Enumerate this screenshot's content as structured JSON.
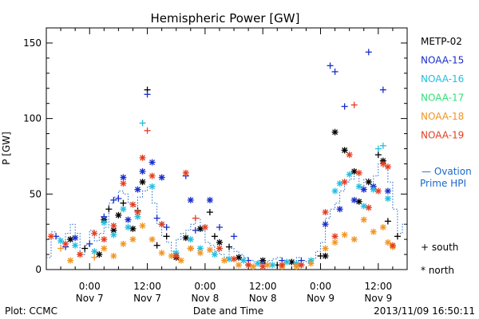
{
  "chart_data": {
    "type": "scatter",
    "title": "Hemispheric Power [GW]",
    "ylabel": "P [GW]",
    "xlabel": "Date and Time",
    "ylim": [
      0,
      160
    ],
    "yticks": [
      0,
      50,
      100,
      150
    ],
    "xlim": [
      -9,
      66
    ],
    "xticks": [
      {
        "t": 0,
        "top": "0:00",
        "bottom": "Nov 7"
      },
      {
        "t": 12,
        "top": "12:00",
        "bottom": "Nov 7"
      },
      {
        "t": 24,
        "top": "0:00",
        "bottom": "Nov 8"
      },
      {
        "t": 36,
        "top": "12:00",
        "bottom": "Nov 8"
      },
      {
        "t": 48,
        "top": "0:00",
        "bottom": "Nov 9"
      },
      {
        "t": 60,
        "top": "12:00",
        "bottom": "Nov 9"
      }
    ],
    "series": [
      {
        "name": "METP-02",
        "color": "#000000",
        "points": [
          [
            -4,
            20,
            "*"
          ],
          [
            -1,
            14,
            "+"
          ],
          [
            2,
            10,
            "*"
          ],
          [
            3,
            33,
            "*"
          ],
          [
            4,
            40,
            "+"
          ],
          [
            5,
            26,
            "*"
          ],
          [
            6,
            36,
            "*"
          ],
          [
            7,
            44,
            "+"
          ],
          [
            9,
            27,
            "*"
          ],
          [
            10,
            39,
            "+"
          ],
          [
            11,
            58,
            "*"
          ],
          [
            12,
            119,
            "+"
          ],
          [
            14,
            16,
            "+"
          ],
          [
            16,
            22,
            "+"
          ],
          [
            18,
            8,
            "*"
          ],
          [
            20,
            21,
            "*"
          ],
          [
            21,
            14,
            "+"
          ],
          [
            23,
            27,
            "*"
          ],
          [
            25,
            38,
            "+"
          ],
          [
            26,
            22,
            "+"
          ],
          [
            27,
            18,
            "*"
          ],
          [
            29,
            15,
            "+"
          ],
          [
            31,
            8,
            "*"
          ],
          [
            33,
            3,
            "+"
          ],
          [
            36,
            6,
            "*"
          ],
          [
            39,
            3,
            "+"
          ],
          [
            42,
            5,
            "*"
          ],
          [
            44,
            3,
            "+"
          ],
          [
            48,
            9,
            "+"
          ],
          [
            49,
            9,
            "*"
          ],
          [
            51,
            91,
            "*"
          ],
          [
            53,
            79,
            "*"
          ],
          [
            55,
            65,
            "*"
          ],
          [
            56,
            45,
            "*"
          ],
          [
            58,
            58,
            "*"
          ],
          [
            60,
            76,
            "+"
          ],
          [
            61,
            72,
            "*"
          ],
          [
            62,
            32,
            "+"
          ],
          [
            64,
            22,
            "+"
          ]
        ]
      },
      {
        "name": "NOAA-15",
        "color": "#1a2ecc",
        "points": [
          [
            -7,
            22,
            "+"
          ],
          [
            -5,
            15,
            "+"
          ],
          [
            -3,
            21,
            "*"
          ],
          [
            0,
            17,
            "+"
          ],
          [
            3,
            35,
            "+"
          ],
          [
            5,
            46,
            "+"
          ],
          [
            6,
            47,
            "+"
          ],
          [
            7,
            61,
            "*"
          ],
          [
            8,
            33,
            "*"
          ],
          [
            10,
            53,
            "*"
          ],
          [
            11,
            65,
            "*"
          ],
          [
            12,
            116,
            "+"
          ],
          [
            13,
            71,
            "*"
          ],
          [
            14,
            34,
            "+"
          ],
          [
            15,
            61,
            "*"
          ],
          [
            16,
            28,
            "+"
          ],
          [
            20,
            62,
            "+"
          ],
          [
            21,
            46,
            "*"
          ],
          [
            22,
            26,
            "+"
          ],
          [
            25,
            46,
            "*"
          ],
          [
            27,
            28,
            "+"
          ],
          [
            30,
            22,
            "+"
          ],
          [
            33,
            6,
            "+"
          ],
          [
            36,
            4,
            "+"
          ],
          [
            40,
            6,
            "+"
          ],
          [
            44,
            6,
            "+"
          ],
          [
            49,
            30,
            "*"
          ],
          [
            50,
            135,
            "+"
          ],
          [
            51,
            131,
            "+"
          ],
          [
            52,
            40,
            "*"
          ],
          [
            53,
            108,
            "+"
          ],
          [
            55,
            46,
            "*"
          ],
          [
            57,
            53,
            "*"
          ],
          [
            58,
            144,
            "+"
          ],
          [
            59,
            55,
            "*"
          ],
          [
            61,
            119,
            "+"
          ],
          [
            62,
            52,
            "*"
          ]
        ]
      },
      {
        "name": "NOAA-16",
        "color": "#22bfe0",
        "points": [
          [
            -6,
            19,
            "*"
          ],
          [
            -3,
            16,
            "*"
          ],
          [
            1,
            12,
            "*"
          ],
          [
            3,
            31,
            "*"
          ],
          [
            5,
            23,
            "*"
          ],
          [
            7,
            40,
            "*"
          ],
          [
            8,
            28,
            "*"
          ],
          [
            10,
            35,
            "*"
          ],
          [
            11,
            97,
            "+"
          ],
          [
            13,
            55,
            "*"
          ],
          [
            15,
            30,
            "*"
          ],
          [
            18,
            11,
            "*"
          ],
          [
            21,
            20,
            "*"
          ],
          [
            23,
            14,
            "*"
          ],
          [
            26,
            10,
            "*"
          ],
          [
            29,
            7,
            "*"
          ],
          [
            32,
            6,
            "*"
          ],
          [
            35,
            4,
            "*"
          ],
          [
            38,
            3,
            "*"
          ],
          [
            41,
            5,
            "*"
          ],
          [
            43,
            4,
            "*"
          ],
          [
            46,
            6,
            "*"
          ],
          [
            51,
            52,
            "*"
          ],
          [
            52,
            57,
            "*"
          ],
          [
            54,
            63,
            "*"
          ],
          [
            56,
            55,
            "*"
          ],
          [
            57,
            42,
            "*"
          ],
          [
            59,
            53,
            "*"
          ],
          [
            60,
            80,
            "+"
          ],
          [
            61,
            82,
            "+"
          ],
          [
            62,
            47,
            "*"
          ]
        ]
      },
      {
        "name": "NOAA-17",
        "color": "#33e07a",
        "points": []
      },
      {
        "name": "NOAA-18",
        "color": "#f29522",
        "points": [
          [
            -6,
            14,
            "+"
          ],
          [
            -4,
            6,
            "*"
          ],
          [
            -2,
            10,
            "*"
          ],
          [
            1,
            8,
            "+"
          ],
          [
            3,
            14,
            "*"
          ],
          [
            5,
            9,
            "*"
          ],
          [
            7,
            17,
            "*"
          ],
          [
            9,
            20,
            "*"
          ],
          [
            11,
            29,
            "*"
          ],
          [
            13,
            20,
            "*"
          ],
          [
            15,
            11,
            "*"
          ],
          [
            17,
            9,
            "*"
          ],
          [
            19,
            6,
            "*"
          ],
          [
            21,
            14,
            "*"
          ],
          [
            23,
            11,
            "*"
          ],
          [
            25,
            13,
            "*"
          ],
          [
            28,
            6,
            "*"
          ],
          [
            31,
            3,
            "*"
          ],
          [
            34,
            2,
            "*"
          ],
          [
            37,
            3,
            "*"
          ],
          [
            40,
            2,
            "*"
          ],
          [
            43,
            2,
            "*"
          ],
          [
            46,
            4,
            "*"
          ],
          [
            49,
            14,
            "*"
          ],
          [
            51,
            18,
            "*"
          ],
          [
            53,
            23,
            "*"
          ],
          [
            55,
            20,
            "*"
          ],
          [
            57,
            33,
            "*"
          ],
          [
            59,
            25,
            "*"
          ],
          [
            61,
            28,
            "*"
          ],
          [
            62,
            18,
            "*"
          ],
          [
            63,
            15,
            "*"
          ]
        ]
      },
      {
        "name": "NOAA-19",
        "color": "#e63d1f",
        "points": [
          [
            -8,
            22,
            "*"
          ],
          [
            -5,
            17,
            "*"
          ],
          [
            -2,
            10,
            "*"
          ],
          [
            1,
            24,
            "*"
          ],
          [
            3,
            20,
            "*"
          ],
          [
            5,
            29,
            "*"
          ],
          [
            7,
            57,
            "*"
          ],
          [
            9,
            43,
            "*"
          ],
          [
            10,
            38,
            "*"
          ],
          [
            11,
            74,
            "*"
          ],
          [
            12,
            92,
            "+"
          ],
          [
            13,
            62,
            "*"
          ],
          [
            15,
            30,
            "*"
          ],
          [
            18,
            9,
            "*"
          ],
          [
            20,
            64,
            "*"
          ],
          [
            22,
            34,
            "+"
          ],
          [
            24,
            28,
            "*"
          ],
          [
            27,
            14,
            "*"
          ],
          [
            30,
            7,
            "*"
          ],
          [
            33,
            3,
            "*"
          ],
          [
            36,
            2,
            "*"
          ],
          [
            40,
            3,
            "*"
          ],
          [
            44,
            3,
            "*"
          ],
          [
            49,
            38,
            "*"
          ],
          [
            51,
            22,
            "*"
          ],
          [
            53,
            58,
            "*"
          ],
          [
            54,
            76,
            "*"
          ],
          [
            55,
            109,
            "+"
          ],
          [
            56,
            64,
            "*"
          ],
          [
            58,
            41,
            "*"
          ],
          [
            60,
            52,
            "*"
          ],
          [
            61,
            70,
            "*"
          ],
          [
            62,
            68,
            "*"
          ],
          [
            63,
            16,
            "*"
          ]
        ]
      }
    ],
    "ovation": {
      "name": "Ovation Prime HPI",
      "color": "#1a66cc",
      "points": [
        [
          -9,
          8
        ],
        [
          -8,
          25
        ],
        [
          -7,
          21
        ],
        [
          -6,
          14
        ],
        [
          -5,
          24
        ],
        [
          -4,
          30
        ],
        [
          -3,
          24
        ],
        [
          -2,
          10
        ],
        [
          -1,
          16
        ],
        [
          0,
          26
        ],
        [
          1,
          19
        ],
        [
          2,
          24
        ],
        [
          3,
          28
        ],
        [
          4,
          44
        ],
        [
          5,
          48
        ],
        [
          6,
          52
        ],
        [
          7,
          50
        ],
        [
          8,
          44
        ],
        [
          9,
          42
        ],
        [
          10,
          48
        ],
        [
          11,
          52
        ],
        [
          12,
          55
        ],
        [
          13,
          44
        ],
        [
          14,
          30
        ],
        [
          15,
          22
        ],
        [
          16,
          18
        ],
        [
          17,
          12
        ],
        [
          18,
          20
        ],
        [
          19,
          24
        ],
        [
          20,
          26
        ],
        [
          21,
          30
        ],
        [
          22,
          34
        ],
        [
          23,
          26
        ],
        [
          24,
          18
        ],
        [
          25,
          16
        ],
        [
          26,
          12
        ],
        [
          27,
          10
        ],
        [
          28,
          8
        ],
        [
          29,
          14
        ],
        [
          30,
          12
        ],
        [
          31,
          10
        ],
        [
          32,
          8
        ],
        [
          33,
          6
        ],
        [
          34,
          5
        ],
        [
          35,
          6
        ],
        [
          36,
          5
        ],
        [
          37,
          6
        ],
        [
          38,
          7
        ],
        [
          39,
          8
        ],
        [
          40,
          6
        ],
        [
          41,
          5
        ],
        [
          42,
          4
        ],
        [
          43,
          8
        ],
        [
          44,
          6
        ],
        [
          45,
          5
        ],
        [
          46,
          7
        ],
        [
          47,
          12
        ],
        [
          48,
          18
        ],
        [
          49,
          34
        ],
        [
          50,
          40
        ],
        [
          51,
          44
        ],
        [
          52,
          52
        ],
        [
          53,
          58
        ],
        [
          54,
          60
        ],
        [
          55,
          64
        ],
        [
          56,
          55
        ],
        [
          57,
          60
        ],
        [
          58,
          56
        ],
        [
          59,
          62
        ],
        [
          60,
          70
        ],
        [
          61,
          68
        ],
        [
          62,
          58
        ],
        [
          63,
          40
        ],
        [
          64,
          24
        ],
        [
          65,
          30
        ]
      ]
    },
    "legend_placement": "right",
    "marker_legend": {
      "south": "+ south",
      "north": "* north"
    }
  },
  "footer": {
    "left": "Plot: CCMC",
    "center": "Date and Time",
    "right": "2013/11/09 16:50:11"
  },
  "legend": {
    "ovation_line1": "— Ovation",
    "ovation_line2": "Prime HPI",
    "south": "+ south",
    "north": "* north"
  }
}
